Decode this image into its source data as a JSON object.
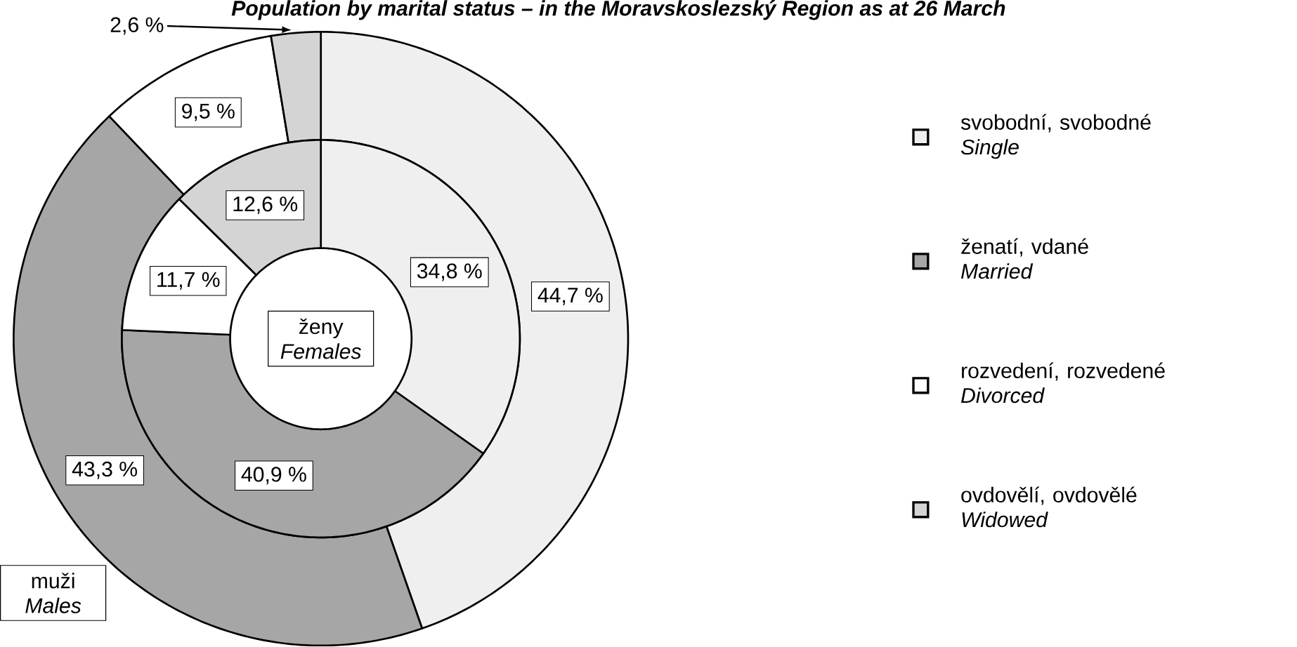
{
  "chart_data": {
    "type": "donut",
    "title": "Population by marital status – in the Moravskoslezský Region as at 26 March",
    "categories": [
      "svobodní, svobodné *Single*",
      "ženatí, vdané *Married*",
      "rozvedení, rozvedené *Divorced*",
      "ovdovělí, ovdovělé *Widowed*"
    ],
    "colors": [
      "#efefef",
      "#a6a6a6",
      "#ffffff",
      "#d4d4d4"
    ],
    "series": [
      {
        "name": "muži *Males*",
        "values": [
          44.7,
          43.3,
          9.5,
          2.6
        ],
        "value_labels": [
          "44,7 %",
          "43,3 %",
          "9,5 %",
          "2,6 %"
        ]
      },
      {
        "name": "ženy *Females*",
        "values": [
          34.8,
          40.9,
          11.7,
          12.6
        ],
        "value_labels": [
          "34,8 %",
          "40,9 %",
          "11,7 %",
          "12,6 %"
        ]
      }
    ],
    "legend": "right"
  }
}
